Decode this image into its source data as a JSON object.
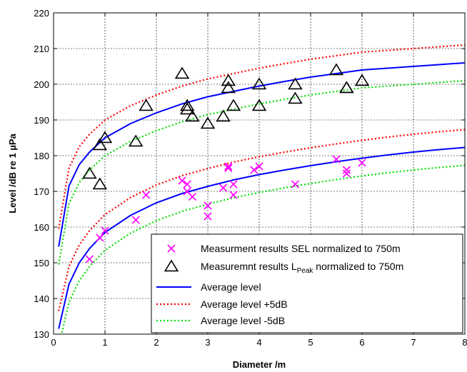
{
  "chart_data": {
    "type": "scatter",
    "xlabel": "Diameter /m",
    "ylabel": "Level /dB re 1 µPa",
    "xlim": [
      0,
      8
    ],
    "ylim": [
      130,
      220
    ],
    "xticks": [
      "0",
      "1",
      "2",
      "3",
      "4",
      "5",
      "6",
      "7",
      "8"
    ],
    "yticks": [
      "130",
      "140",
      "150",
      "160",
      "170",
      "180",
      "190",
      "200",
      "210",
      "220"
    ],
    "grid": true,
    "legend_position": "bottom-right",
    "series": [
      {
        "name": "Measurment results SEL normalized to 750m",
        "kind": "scatter",
        "marker": "x",
        "color": "#ff00ff",
        "points": [
          [
            0.7,
            151
          ],
          [
            0.9,
            157
          ],
          [
            1.0,
            159
          ],
          [
            1.6,
            162
          ],
          [
            1.8,
            169
          ],
          [
            2.5,
            173
          ],
          [
            2.6,
            172
          ],
          [
            2.6,
            170
          ],
          [
            2.7,
            168.5
          ],
          [
            3.0,
            166
          ],
          [
            3.0,
            163
          ],
          [
            3.3,
            171
          ],
          [
            3.4,
            177
          ],
          [
            3.4,
            176.5
          ],
          [
            3.5,
            172
          ],
          [
            3.5,
            169
          ],
          [
            3.9,
            176
          ],
          [
            4.0,
            177
          ],
          [
            4.7,
            172
          ],
          [
            5.5,
            179
          ],
          [
            5.7,
            176
          ],
          [
            5.7,
            175
          ],
          [
            6.0,
            178
          ]
        ]
      },
      {
        "name": "Measuremnt results L",
        "name_sub": "Peak",
        "name_suffix": " normalized to 750m",
        "kind": "scatter",
        "marker": "triangle",
        "color": "#000000",
        "points": [
          [
            0.7,
            175
          ],
          [
            0.9,
            183
          ],
          [
            0.9,
            172
          ],
          [
            1.0,
            185
          ],
          [
            1.6,
            184
          ],
          [
            1.8,
            194
          ],
          [
            2.5,
            203
          ],
          [
            2.6,
            194
          ],
          [
            2.6,
            193
          ],
          [
            2.7,
            191
          ],
          [
            3.0,
            189
          ],
          [
            3.3,
            191
          ],
          [
            3.4,
            201
          ],
          [
            3.4,
            199
          ],
          [
            3.5,
            194
          ],
          [
            4.0,
            200
          ],
          [
            4.0,
            194
          ],
          [
            4.7,
            200
          ],
          [
            4.7,
            196
          ],
          [
            5.5,
            204
          ],
          [
            5.7,
            199
          ],
          [
            5.7,
            199
          ],
          [
            6.0,
            201
          ]
        ]
      },
      {
        "name": "Average level",
        "kind": "line",
        "style": "solid",
        "color": "#0000ff",
        "x": [
          0.1,
          0.3,
          0.5,
          0.7,
          1,
          1.5,
          2,
          2.5,
          3,
          3.5,
          4,
          4.5,
          5,
          5.5,
          6,
          6.5,
          7,
          7.5,
          8
        ],
        "groups": [
          [
            154.5,
            171.5,
            177.5,
            181,
            185,
            189,
            192,
            194.5,
            196.5,
            198,
            199.5,
            200.8,
            202,
            203,
            204,
            204.5,
            205,
            205.5,
            206
          ],
          [
            131.5,
            144,
            150,
            154,
            158.5,
            163.3,
            166.8,
            169.4,
            171.4,
            173.2,
            174.7,
            176,
            177.2,
            178.3,
            179.3,
            180.2,
            181,
            181.7,
            182.3
          ]
        ]
      },
      {
        "name": "Average level +5dB",
        "kind": "line",
        "style": "dotted",
        "color": "#ff0000",
        "x": [
          0.1,
          0.3,
          0.5,
          0.7,
          1,
          1.5,
          2,
          2.5,
          3,
          3.5,
          4,
          4.5,
          5,
          5.5,
          6,
          6.5,
          7,
          7.5,
          8
        ],
        "groups": [
          [
            159.5,
            176.5,
            182.5,
            186,
            190,
            194,
            197,
            199.5,
            201.5,
            203,
            204.5,
            205.8,
            207,
            208,
            209,
            209.5,
            210,
            210.5,
            211
          ],
          [
            136.5,
            149,
            155,
            159,
            163.5,
            168.3,
            171.8,
            174.4,
            176.4,
            178.2,
            179.7,
            181,
            182.2,
            183.3,
            184.3,
            185.2,
            186,
            186.7,
            187.3
          ]
        ]
      },
      {
        "name": "Average level -5dB",
        "kind": "line",
        "style": "dotted",
        "color": "#00e000",
        "x": [
          0.1,
          0.3,
          0.5,
          0.7,
          1,
          1.5,
          2,
          2.5,
          3,
          3.5,
          4,
          4.5,
          5,
          5.5,
          6,
          6.5,
          7,
          7.5,
          8
        ],
        "groups": [
          [
            149.5,
            166.5,
            172.5,
            176,
            180,
            184,
            187,
            189.5,
            191.5,
            193,
            194.5,
            195.8,
            197,
            198,
            199,
            199.5,
            200,
            200.5,
            201
          ],
          [
            126.5,
            139,
            145,
            149,
            153.5,
            158.3,
            161.8,
            164.4,
            166.4,
            168.2,
            169.7,
            171,
            172.2,
            173.3,
            174.3,
            175.2,
            176,
            176.7,
            177.3
          ]
        ]
      }
    ]
  }
}
